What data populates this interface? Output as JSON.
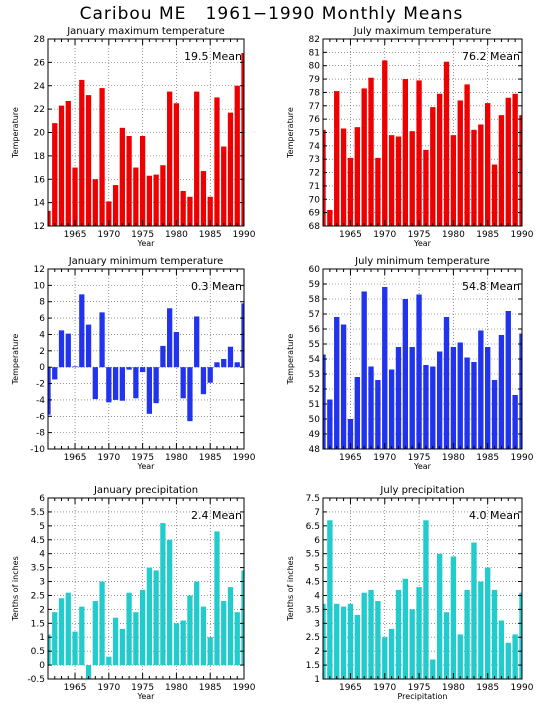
{
  "title": "Caribou ME   1961−1990 Monthly Means",
  "chart_data": [
    {
      "type": "bar",
      "title": "January maximum temperature",
      "mean_label": "19.5 Mean",
      "xlabel": "Year",
      "ylabel": "Temperature",
      "color": "#ee0000",
      "xlim": [
        1961,
        1990
      ],
      "ylim": [
        12,
        28
      ],
      "yticks": [
        12,
        14,
        16,
        18,
        20,
        22,
        24,
        26,
        28
      ],
      "xticks": [
        1965,
        1970,
        1975,
        1980,
        1985,
        1990
      ],
      "x": [
        1961,
        1962,
        1963,
        1964,
        1965,
        1966,
        1967,
        1968,
        1969,
        1970,
        1971,
        1972,
        1973,
        1974,
        1975,
        1976,
        1977,
        1978,
        1979,
        1980,
        1981,
        1982,
        1983,
        1984,
        1985,
        1986,
        1987,
        1988,
        1989,
        1990
      ],
      "values": [
        13.3,
        20.8,
        22.3,
        22.7,
        17.0,
        24.5,
        23.2,
        16.0,
        23.8,
        14.1,
        15.5,
        20.4,
        19.7,
        17.0,
        19.7,
        16.3,
        16.4,
        17.2,
        23.5,
        22.5,
        15.0,
        14.5,
        23.5,
        16.7,
        14.5,
        23.0,
        18.8,
        21.7,
        24.0,
        26.8
      ]
    },
    {
      "type": "bar",
      "title": "July maximum temperature",
      "mean_label": "76.2 Mean",
      "xlabel": "Year",
      "ylabel": "Temperature",
      "color": "#ee0000",
      "xlim": [
        1961,
        1990
      ],
      "ylim": [
        68,
        82
      ],
      "yticks": [
        68,
        69,
        70,
        71,
        72,
        73,
        74,
        75,
        76,
        77,
        78,
        79,
        80,
        81,
        82
      ],
      "xticks": [
        1965,
        1970,
        1975,
        1980,
        1985,
        1990
      ],
      "x": [
        1961,
        1962,
        1963,
        1964,
        1965,
        1966,
        1967,
        1968,
        1969,
        1970,
        1971,
        1972,
        1973,
        1974,
        1975,
        1976,
        1977,
        1978,
        1979,
        1980,
        1981,
        1982,
        1983,
        1984,
        1985,
        1986,
        1987,
        1988,
        1989,
        1990
      ],
      "values": [
        75.2,
        69.2,
        78.1,
        75.3,
        73.1,
        75.4,
        78.3,
        79.1,
        73.1,
        80.4,
        74.8,
        74.7,
        79.0,
        75.1,
        78.9,
        73.7,
        76.9,
        77.9,
        80.3,
        74.8,
        77.4,
        78.6,
        75.2,
        75.6,
        77.2,
        72.6,
        76.3,
        77.6,
        77.9,
        76.3
      ]
    },
    {
      "type": "bar",
      "title": "January minimum temperature",
      "mean_label": "0.3 Mean",
      "xlabel": "Year",
      "ylabel": "Temperature",
      "color": "#2233ee",
      "xlim": [
        1961,
        1990
      ],
      "ylim": [
        -10,
        12
      ],
      "yticks": [
        -10,
        -8,
        -6,
        -4,
        -2,
        0,
        2,
        4,
        6,
        8,
        10,
        12
      ],
      "xticks": [
        1965,
        1970,
        1975,
        1980,
        1985,
        1990
      ],
      "x": [
        1961,
        1962,
        1963,
        1964,
        1965,
        1966,
        1967,
        1968,
        1969,
        1970,
        1971,
        1972,
        1973,
        1974,
        1975,
        1976,
        1977,
        1978,
        1979,
        1980,
        1981,
        1982,
        1983,
        1984,
        1985,
        1986,
        1987,
        1988,
        1989,
        1990
      ],
      "values": [
        -5.8,
        -1.5,
        4.5,
        4.1,
        0.1,
        8.9,
        5.2,
        -3.9,
        6.7,
        -4.3,
        -4.0,
        -4.1,
        -0.3,
        -3.8,
        -0.6,
        -5.7,
        -4.4,
        2.6,
        7.2,
        4.3,
        -3.8,
        -6.6,
        6.2,
        -3.3,
        -1.9,
        0.6,
        1.0,
        2.5,
        0.6,
        7.8
      ]
    },
    {
      "type": "bar",
      "title": "July minimum temperature",
      "mean_label": "54.8 Mean",
      "xlabel": "Year",
      "ylabel": "Temperature",
      "color": "#2233ee",
      "xlim": [
        1961,
        1990
      ],
      "ylim": [
        48,
        60
      ],
      "yticks": [
        48,
        49,
        50,
        51,
        52,
        53,
        54,
        55,
        56,
        57,
        58,
        59,
        60
      ],
      "xticks": [
        1965,
        1970,
        1975,
        1980,
        1985,
        1990
      ],
      "x": [
        1961,
        1962,
        1963,
        1964,
        1965,
        1966,
        1967,
        1968,
        1969,
        1970,
        1971,
        1972,
        1973,
        1974,
        1975,
        1976,
        1977,
        1978,
        1979,
        1980,
        1981,
        1982,
        1983,
        1984,
        1985,
        1986,
        1987,
        1988,
        1989,
        1990
      ],
      "values": [
        54.3,
        51.3,
        56.8,
        56.3,
        50.0,
        52.8,
        58.5,
        53.5,
        52.6,
        58.8,
        53.3,
        54.8,
        58.0,
        54.8,
        58.3,
        53.6,
        53.5,
        54.5,
        56.8,
        54.8,
        55.1,
        54.1,
        53.8,
        55.9,
        54.8,
        52.6,
        55.6,
        57.2,
        51.6,
        55.7
      ]
    },
    {
      "type": "bar",
      "title": "January precipitation",
      "mean_label": "2.4 Mean",
      "xlabel": "Year",
      "ylabel": "Tenths of inches",
      "color": "#22cccc",
      "xlim": [
        1961,
        1990
      ],
      "ylim": [
        -0.5,
        6
      ],
      "yticks": [
        -0.5,
        0,
        0.5,
        1,
        1.5,
        2,
        2.5,
        3,
        3.5,
        4,
        4.5,
        5,
        5.5,
        6
      ],
      "xticks": [
        1965,
        1970,
        1975,
        1980,
        1985,
        1990
      ],
      "x": [
        1961,
        1962,
        1963,
        1964,
        1965,
        1966,
        1967,
        1968,
        1969,
        1970,
        1971,
        1972,
        1973,
        1974,
        1975,
        1976,
        1977,
        1978,
        1979,
        1980,
        1981,
        1982,
        1983,
        1984,
        1985,
        1986,
        1987,
        1988,
        1989,
        1990
      ],
      "values": [
        1.1,
        1.9,
        2.4,
        2.6,
        1.2,
        2.1,
        -0.5,
        2.3,
        3.0,
        0.3,
        1.7,
        1.3,
        2.6,
        1.9,
        2.7,
        3.5,
        3.4,
        5.1,
        4.5,
        1.5,
        1.6,
        2.5,
        3.0,
        2.1,
        1.0,
        4.8,
        2.3,
        2.8,
        1.9,
        3.4
      ]
    },
    {
      "type": "bar",
      "title": "July precipitation",
      "mean_label": "4.0 Mean",
      "xlabel": "Precipitation",
      "ylabel": "Tenths of inches",
      "color": "#22cccc",
      "xlim": [
        1961,
        1990
      ],
      "ylim": [
        1,
        7.5
      ],
      "yticks": [
        1,
        1.5,
        2,
        2.5,
        3,
        3.5,
        4,
        4.5,
        5,
        5.5,
        6,
        6.5,
        7,
        7.5
      ],
      "xticks": [
        1965,
        1970,
        1975,
        1980,
        1985,
        1990
      ],
      "x": [
        1961,
        1962,
        1963,
        1964,
        1965,
        1966,
        1967,
        1968,
        1969,
        1970,
        1971,
        1972,
        1973,
        1974,
        1975,
        1976,
        1977,
        1978,
        1979,
        1980,
        1981,
        1982,
        1983,
        1984,
        1985,
        1986,
        1987,
        1988,
        1989,
        1990
      ],
      "values": [
        3.7,
        6.7,
        3.7,
        3.6,
        3.7,
        3.3,
        4.1,
        4.2,
        3.8,
        2.5,
        2.8,
        4.2,
        4.6,
        3.5,
        4.3,
        6.7,
        1.7,
        5.5,
        3.4,
        5.4,
        2.6,
        4.2,
        5.9,
        4.5,
        5.0,
        4.2,
        3.1,
        2.3,
        2.6,
        4.1
      ]
    }
  ]
}
